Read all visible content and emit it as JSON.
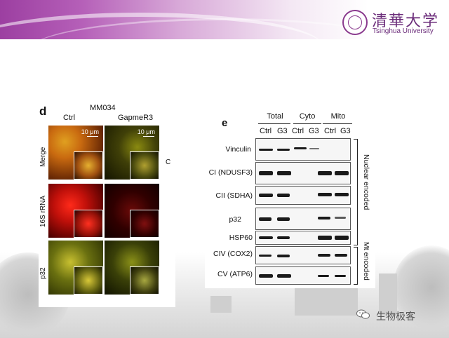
{
  "header": {
    "university_cn": "清華大学",
    "university_en": "Tsinghua University",
    "colors": {
      "banner_dark": "#9c3fa1",
      "banner_light": "#d8a9d8",
      "brand_text": "#6b2c7a"
    }
  },
  "panel_d": {
    "letter": "d",
    "cell_line": "MM034",
    "columns": [
      "Ctrl",
      "GapmeR3"
    ],
    "rows": [
      "Merge",
      "16S rRNA",
      "p32"
    ],
    "scale_bar": "10 μm",
    "side_letter": "C"
  },
  "panel_e": {
    "letter": "e",
    "groups": [
      "Total",
      "Cyto",
      "Mito"
    ],
    "lanes": [
      "Ctrl",
      "G3",
      "Ctrl",
      "G3",
      "Ctrl",
      "G3"
    ],
    "proteins": [
      "Vinculin",
      "CI (NDUSF3)",
      "CII (SDHA)",
      "p32",
      "HSP60",
      "CIV (COX2)",
      "CV (ATP6)"
    ],
    "categories": [
      "Nuclear encoded",
      "Mt encoded"
    ]
  },
  "watermark": {
    "text": "生物极客",
    "icon": "wechat-icon"
  }
}
